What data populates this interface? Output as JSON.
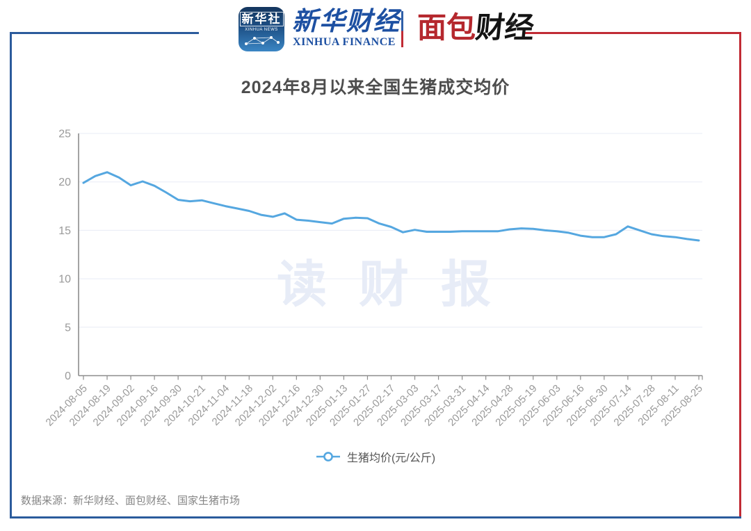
{
  "header": {
    "xinhua_icon": {
      "cn": "新华社",
      "en": "XINHUA NEWS"
    },
    "xinhua_finance": {
      "cn": "新华财经",
      "en": "XINHUA FINANCE"
    },
    "bread_finance": {
      "cn_red": "面包",
      "cn_black": "财经",
      "reg_mark": "®"
    }
  },
  "title": "2024年8月以来全国生猪成交均价",
  "watermark": "读财报",
  "legend": {
    "label": "生猪均价(元/公斤)"
  },
  "footer": {
    "source": "数据来源：新华财经、面包财经、国家生猪市场"
  },
  "colors": {
    "frame_blue": "#2b5b9c",
    "frame_red": "#c12b35",
    "line_blue": "#55a7e0",
    "axis_gray": "#8c8c8c",
    "label_gray": "#999999",
    "grid_gray": "#e8ecf6",
    "watermark": "#e7ecf7"
  },
  "chart_data": {
    "type": "line",
    "title": "2024年8月以来全国生猪成交均价",
    "series_name": "生猪均价(元/公斤)",
    "ylabel": "",
    "xlabel": "",
    "ylim": [
      0,
      25
    ],
    "y_ticks": [
      0,
      5,
      10,
      15,
      20,
      25
    ],
    "grid": true,
    "legend_position": "bottom",
    "line_color": "#55a7e0",
    "x_labels": [
      "2024-08-05",
      "2024-08-19",
      "2024-09-02",
      "2024-09-16",
      "2024-09-30",
      "2024-10-21",
      "2024-11-04",
      "2024-11-18",
      "2024-12-02",
      "2024-12-16",
      "2024-12-30",
      "2025-01-13",
      "2025-01-27",
      "2025-02-17",
      "2025-03-03",
      "2025-03-17",
      "2025-03-31",
      "2025-04-14",
      "2025-04-28",
      "2025-05-19",
      "2025-06-03",
      "2025-06-16",
      "2025-06-30",
      "2025-07-14",
      "2025-07-28",
      "2025-08-11",
      "2025-08-25"
    ],
    "label_every_n_points": 2,
    "values": [
      19.9,
      20.6,
      21.0,
      20.45,
      19.65,
      20.05,
      19.6,
      18.9,
      18.15,
      18.0,
      18.1,
      17.8,
      17.5,
      17.25,
      17.0,
      16.6,
      16.4,
      16.75,
      16.1,
      16.0,
      15.85,
      15.7,
      16.2,
      16.3,
      16.25,
      15.7,
      15.35,
      14.8,
      15.05,
      14.85,
      14.85,
      14.85,
      14.9,
      14.9,
      14.9,
      14.9,
      15.1,
      15.2,
      15.15,
      15.0,
      14.9,
      14.75,
      14.45,
      14.3,
      14.3,
      14.6,
      15.4,
      15.0,
      14.6,
      14.4,
      14.3,
      14.1,
      13.95
    ]
  }
}
